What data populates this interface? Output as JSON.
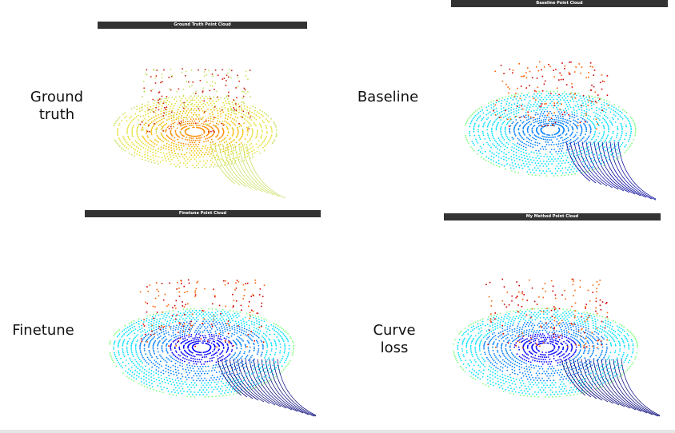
{
  "labels": {
    "ground_truth": "Ground\ntruth",
    "baseline": "Baseline",
    "finetune": "Finetune",
    "curve_loss": "Curve\nloss"
  },
  "panel_titles": {
    "ground_truth": "Ground Truth Point Cloud",
    "baseline": "Baseline Point Cloud",
    "finetune": "Finetune Point Cloud",
    "my_method": "My Method Point Cloud"
  },
  "colors": {
    "jet": [
      "#00007f",
      "#0000ff",
      "#0080ff",
      "#00e0ff",
      "#7fff7f",
      "#ffd000",
      "#ff6000",
      "#d00000"
    ],
    "ground_truth": [
      "#d02010",
      "#ff8c00",
      "#f4c000",
      "#e6e030",
      "#c8e060"
    ],
    "title_bar": "#333333"
  }
}
